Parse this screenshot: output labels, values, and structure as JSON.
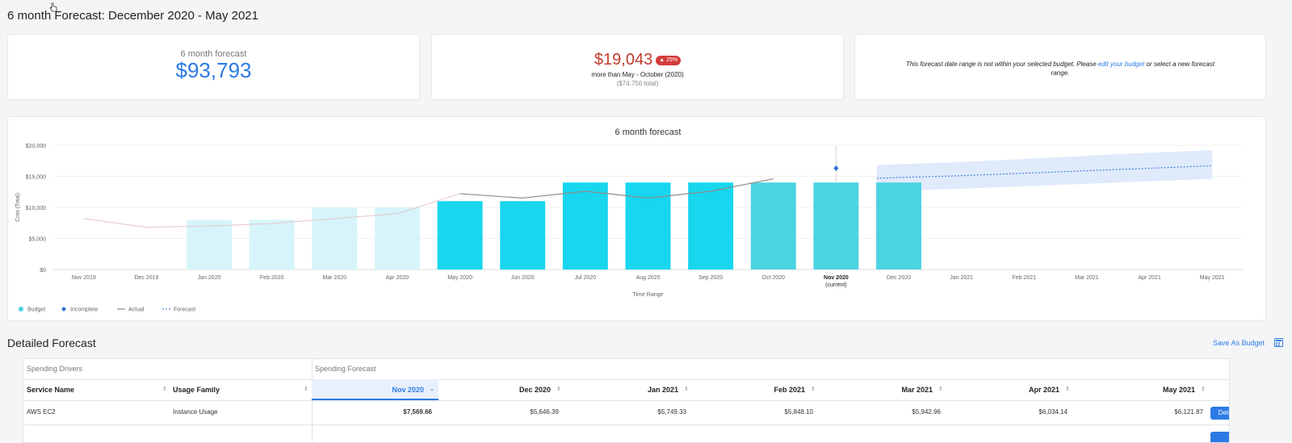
{
  "page": {
    "title": "6 month Forecast: December 2020 - May 2021"
  },
  "cards": {
    "forecast": {
      "label": "6 month forecast",
      "value": "$93,793"
    },
    "difference": {
      "value": "$19,043",
      "badge": "▲ 25%",
      "subtitle": "more than May - October (2020)",
      "total": "($74,750 total)"
    },
    "notice": {
      "text_before": "This forecast date range is not within your selected budget. Please ",
      "link": "edit your budget",
      "text_after": " or select a new forecast range."
    }
  },
  "chart_data": {
    "type": "bar",
    "title": "6 month forecast",
    "xlabel": "Time Range",
    "ylabel": "Cost (Total)",
    "ylim": [
      0,
      20000
    ],
    "y_ticks": [
      "$0",
      "$5,000",
      "$10,000",
      "$15,000",
      "$20,000"
    ],
    "categories": [
      "Nov 2019",
      "Dec 2019",
      "Jan 2020",
      "Feb 2020",
      "Mar 2020",
      "Apr 2020",
      "May 2020",
      "Jun 2020",
      "Jul 2020",
      "Aug 2020",
      "Sep 2020",
      "Oct 2020",
      "Nov 2020",
      "Dec 2020",
      "Jan 2021",
      "Feb 2021",
      "Mar 2021",
      "Apr 2021",
      "May 2021"
    ],
    "current_sublabel": "(current)",
    "current_index": 12,
    "series": [
      {
        "name": "Budget",
        "kind": "bar",
        "values": [
          null,
          null,
          8000,
          8000,
          10000,
          10000,
          11000,
          11000,
          14000,
          14000,
          14000,
          14000,
          14000,
          14000,
          null,
          null,
          null,
          null,
          null
        ]
      },
      {
        "name": "Incomplete",
        "kind": "point",
        "values": [
          null,
          null,
          null,
          null,
          null,
          null,
          null,
          null,
          null,
          null,
          null,
          null,
          16300,
          null,
          null,
          null,
          null,
          null,
          null
        ]
      },
      {
        "name": "Actual",
        "kind": "line",
        "values": [
          8200,
          6800,
          7000,
          7400,
          8200,
          9000,
          12200,
          11500,
          12600,
          11500,
          12600,
          14600,
          null,
          null,
          null,
          null,
          null,
          null,
          null
        ]
      },
      {
        "name": "Forecast",
        "kind": "dashed",
        "values": [
          null,
          null,
          null,
          null,
          null,
          null,
          null,
          null,
          null,
          null,
          null,
          null,
          null,
          14700,
          15100,
          15500,
          15900,
          16300,
          16700
        ]
      }
    ],
    "forecast_band": {
      "upper": [
        null,
        null,
        null,
        null,
        null,
        null,
        null,
        null,
        null,
        null,
        null,
        null,
        null,
        16800,
        17300,
        17800,
        18300,
        18800,
        19200
      ],
      "lower": [
        null,
        null,
        null,
        null,
        null,
        null,
        null,
        null,
        null,
        null,
        null,
        null,
        null,
        12600,
        13000,
        13400,
        13800,
        14200,
        14600
      ]
    },
    "legend": [
      "Budget",
      "Incomplete",
      "Actual",
      "Forecast"
    ],
    "legend_position": "bottom-left",
    "colors": {
      "bar_past": "#d6f5fa",
      "bar_actual": "#17d6ee",
      "bar_budget": "#4bd3e2",
      "actual_line": "#8c8c8c",
      "incomplete": "#2c6fd6",
      "forecast": "#2c6fd6",
      "band": "#dce8fb"
    }
  },
  "detailed": {
    "title": "Detailed Forecast",
    "save_label": "Save As Budget",
    "groups": {
      "drivers": "Spending Drivers",
      "forecast": "Spending Forecast"
    },
    "columns": {
      "service": "Service Name",
      "usage": "Usage Family",
      "months": [
        "Nov 2020",
        "Dec 2020",
        "Jan 2021",
        "Feb 2021",
        "Mar 2021",
        "Apr 2021",
        "May 2021"
      ]
    },
    "row": {
      "service": "AWS EC2",
      "usage": "Instance Usage",
      "values": [
        "$7,569.66",
        "$5,646.39",
        "$5,749.33",
        "$5,848.10",
        "$5,942.96",
        "$6,034.14",
        "$6,121.87"
      ],
      "button": "Details"
    }
  }
}
